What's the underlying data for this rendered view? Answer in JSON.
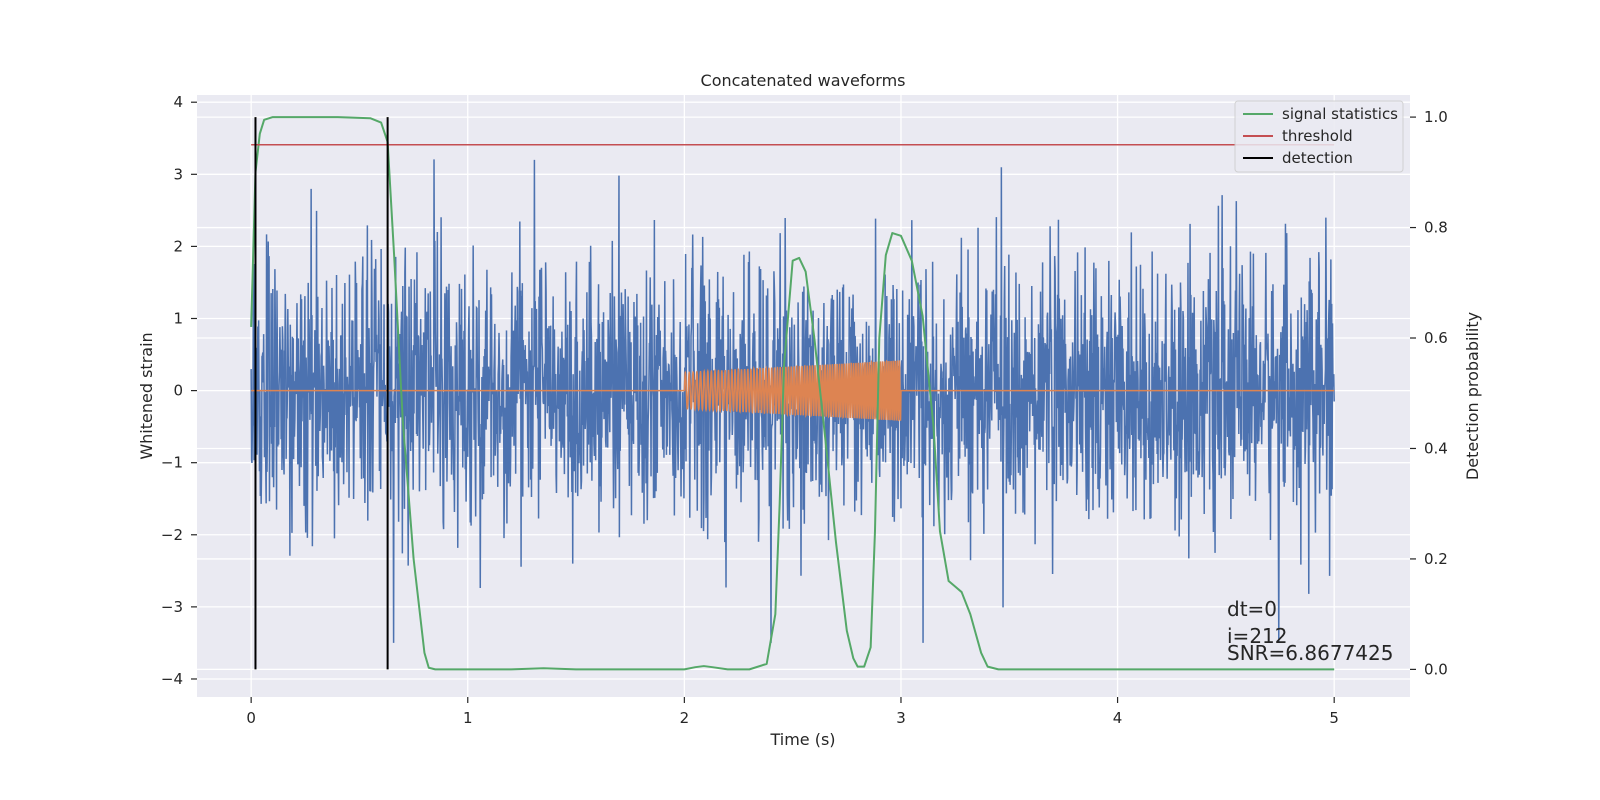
{
  "chart_data": {
    "type": "line",
    "title": "Concatenated waveforms",
    "xlabel": "Time (s)",
    "ylabel": "Whitened strain",
    "ylabel_right": "Detection probability",
    "xlim": [
      -0.25,
      5.35
    ],
    "ylim": [
      -4.25,
      4.1
    ],
    "ylim_right": [
      -0.05,
      1.04
    ],
    "xticks": [
      0,
      1,
      2,
      3,
      4,
      5
    ],
    "yticks": [
      -4,
      -3,
      -2,
      -1,
      0,
      1,
      2,
      3,
      4
    ],
    "yticks_right": [
      0.0,
      0.2,
      0.4,
      0.6,
      0.8,
      1.0
    ],
    "xtick_labels": [
      "0",
      "1",
      "2",
      "3",
      "4",
      "5"
    ],
    "ytick_labels": [
      "−4",
      "−3",
      "−2",
      "−1",
      "0",
      "1",
      "2",
      "3",
      "4"
    ],
    "ytick_labels_right": [
      "0.0",
      "0.2",
      "0.4",
      "0.6",
      "0.8",
      "1.0"
    ],
    "grid": true,
    "background": "#eaeaf2",
    "legend": {
      "position": "top-right",
      "entries": [
        "signal statistics",
        "threshold",
        "detection"
      ]
    },
    "series": [
      {
        "axis": "left",
        "kind": "noise",
        "color": "#4c72b0",
        "x_range": [
          0,
          5
        ],
        "envelope": [
          -3.5,
          3.6
        ]
      },
      {
        "axis": "left",
        "kind": "chirp",
        "color": "#dd8452",
        "x_range": [
          0,
          5
        ],
        "chirp_x_range": [
          2.0,
          3.0
        ],
        "amplitude_start": 0.25,
        "amplitude_end": 0.42
      },
      {
        "name": "signal statistics",
        "axis": "right",
        "color": "#55a868",
        "x": [
          0,
          0.02,
          0.04,
          0.06,
          0.1,
          0.2,
          0.4,
          0.55,
          0.6,
          0.63,
          0.66,
          0.7,
          0.75,
          0.8,
          0.82,
          0.85,
          1.0,
          1.2,
          1.35,
          1.5,
          1.8,
          2.0,
          2.05,
          2.09,
          2.13,
          2.2,
          2.3,
          2.38,
          2.42,
          2.44,
          2.46,
          2.5,
          2.53,
          2.56,
          2.6,
          2.65,
          2.7,
          2.75,
          2.78,
          2.8,
          2.83,
          2.86,
          2.88,
          2.9,
          2.93,
          2.96,
          3.0,
          3.05,
          3.1,
          3.15,
          3.18,
          3.22,
          3.25,
          3.28,
          3.32,
          3.37,
          3.4,
          3.45,
          3.6,
          4.0,
          4.5,
          5.0
        ],
        "y": [
          0.62,
          0.9,
          0.97,
          0.995,
          1.0,
          1.0,
          1.0,
          0.998,
          0.99,
          0.955,
          0.75,
          0.45,
          0.2,
          0.03,
          0.003,
          0.0,
          0.0,
          0.0,
          0.002,
          0.0,
          0.0,
          0.0,
          0.004,
          0.006,
          0.004,
          0.0,
          0.0,
          0.01,
          0.1,
          0.3,
          0.55,
          0.74,
          0.745,
          0.72,
          0.6,
          0.42,
          0.23,
          0.07,
          0.02,
          0.005,
          0.005,
          0.04,
          0.25,
          0.6,
          0.75,
          0.79,
          0.785,
          0.74,
          0.64,
          0.44,
          0.25,
          0.16,
          0.15,
          0.14,
          0.1,
          0.03,
          0.005,
          0.0,
          0.0,
          0.0,
          0.0,
          0.0
        ]
      },
      {
        "name": "threshold",
        "axis": "right",
        "color": "#c44e52",
        "x": [
          0,
          5
        ],
        "y": [
          0.95,
          0.95
        ]
      },
      {
        "name": "detection",
        "axis": "right",
        "color": "#000000",
        "vlines": [
          0.02,
          0.63
        ],
        "y_range": [
          0.0,
          1.0
        ]
      }
    ],
    "annotations": [
      "dt=0",
      "i=212",
      "SNR=6.8677425"
    ]
  }
}
